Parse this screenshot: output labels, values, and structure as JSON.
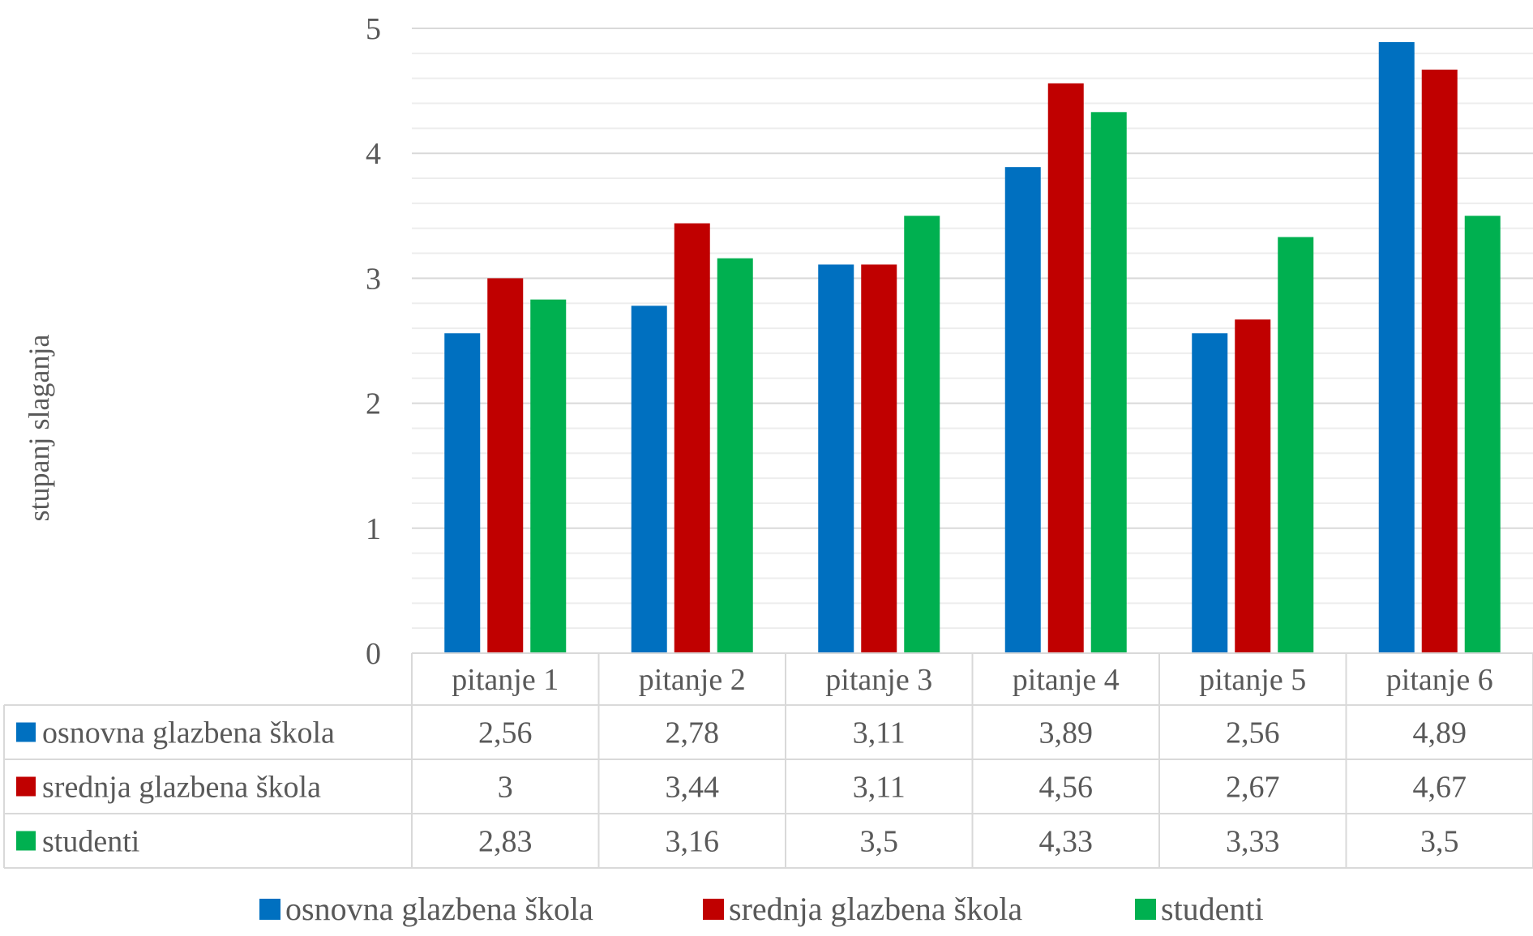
{
  "chart_data": {
    "type": "bar",
    "title": "",
    "xlabel": "",
    "ylabel": "stupanj slaganja",
    "ylim": [
      0,
      5
    ],
    "y_ticks": [
      "0",
      "1",
      "2",
      "3",
      "4",
      "5"
    ],
    "y_tick_values": [
      0,
      1,
      2,
      3,
      4,
      5
    ],
    "minor_grid_step": 0.2,
    "grid": true,
    "legend_position": "bottom",
    "data_table": true,
    "categories": [
      "pitanje 1",
      "pitanje 2",
      "pitanje 3",
      "pitanje 4",
      "pitanje 5",
      "pitanje 6"
    ],
    "series": [
      {
        "name": "osnovna glazbena škola",
        "color": "#0070C0",
        "values": [
          2.56,
          2.78,
          3.11,
          3.89,
          2.56,
          4.89
        ],
        "labels": [
          "2,56",
          "2,78",
          "3,11",
          "3,89",
          "2,56",
          "4,89"
        ]
      },
      {
        "name": "srednja glazbena škola",
        "color": "#C00000",
        "values": [
          3,
          3.44,
          3.11,
          4.56,
          2.67,
          4.67
        ],
        "labels": [
          "3",
          "3,44",
          "3,11",
          "4,56",
          "2,67",
          "4,67"
        ]
      },
      {
        "name": "studenti",
        "color": "#00B050",
        "values": [
          2.83,
          3.16,
          3.5,
          4.33,
          3.33,
          3.5
        ],
        "labels": [
          "2,83",
          "3,16",
          "3,5",
          "4,33",
          "3,33",
          "3,5"
        ]
      }
    ]
  }
}
